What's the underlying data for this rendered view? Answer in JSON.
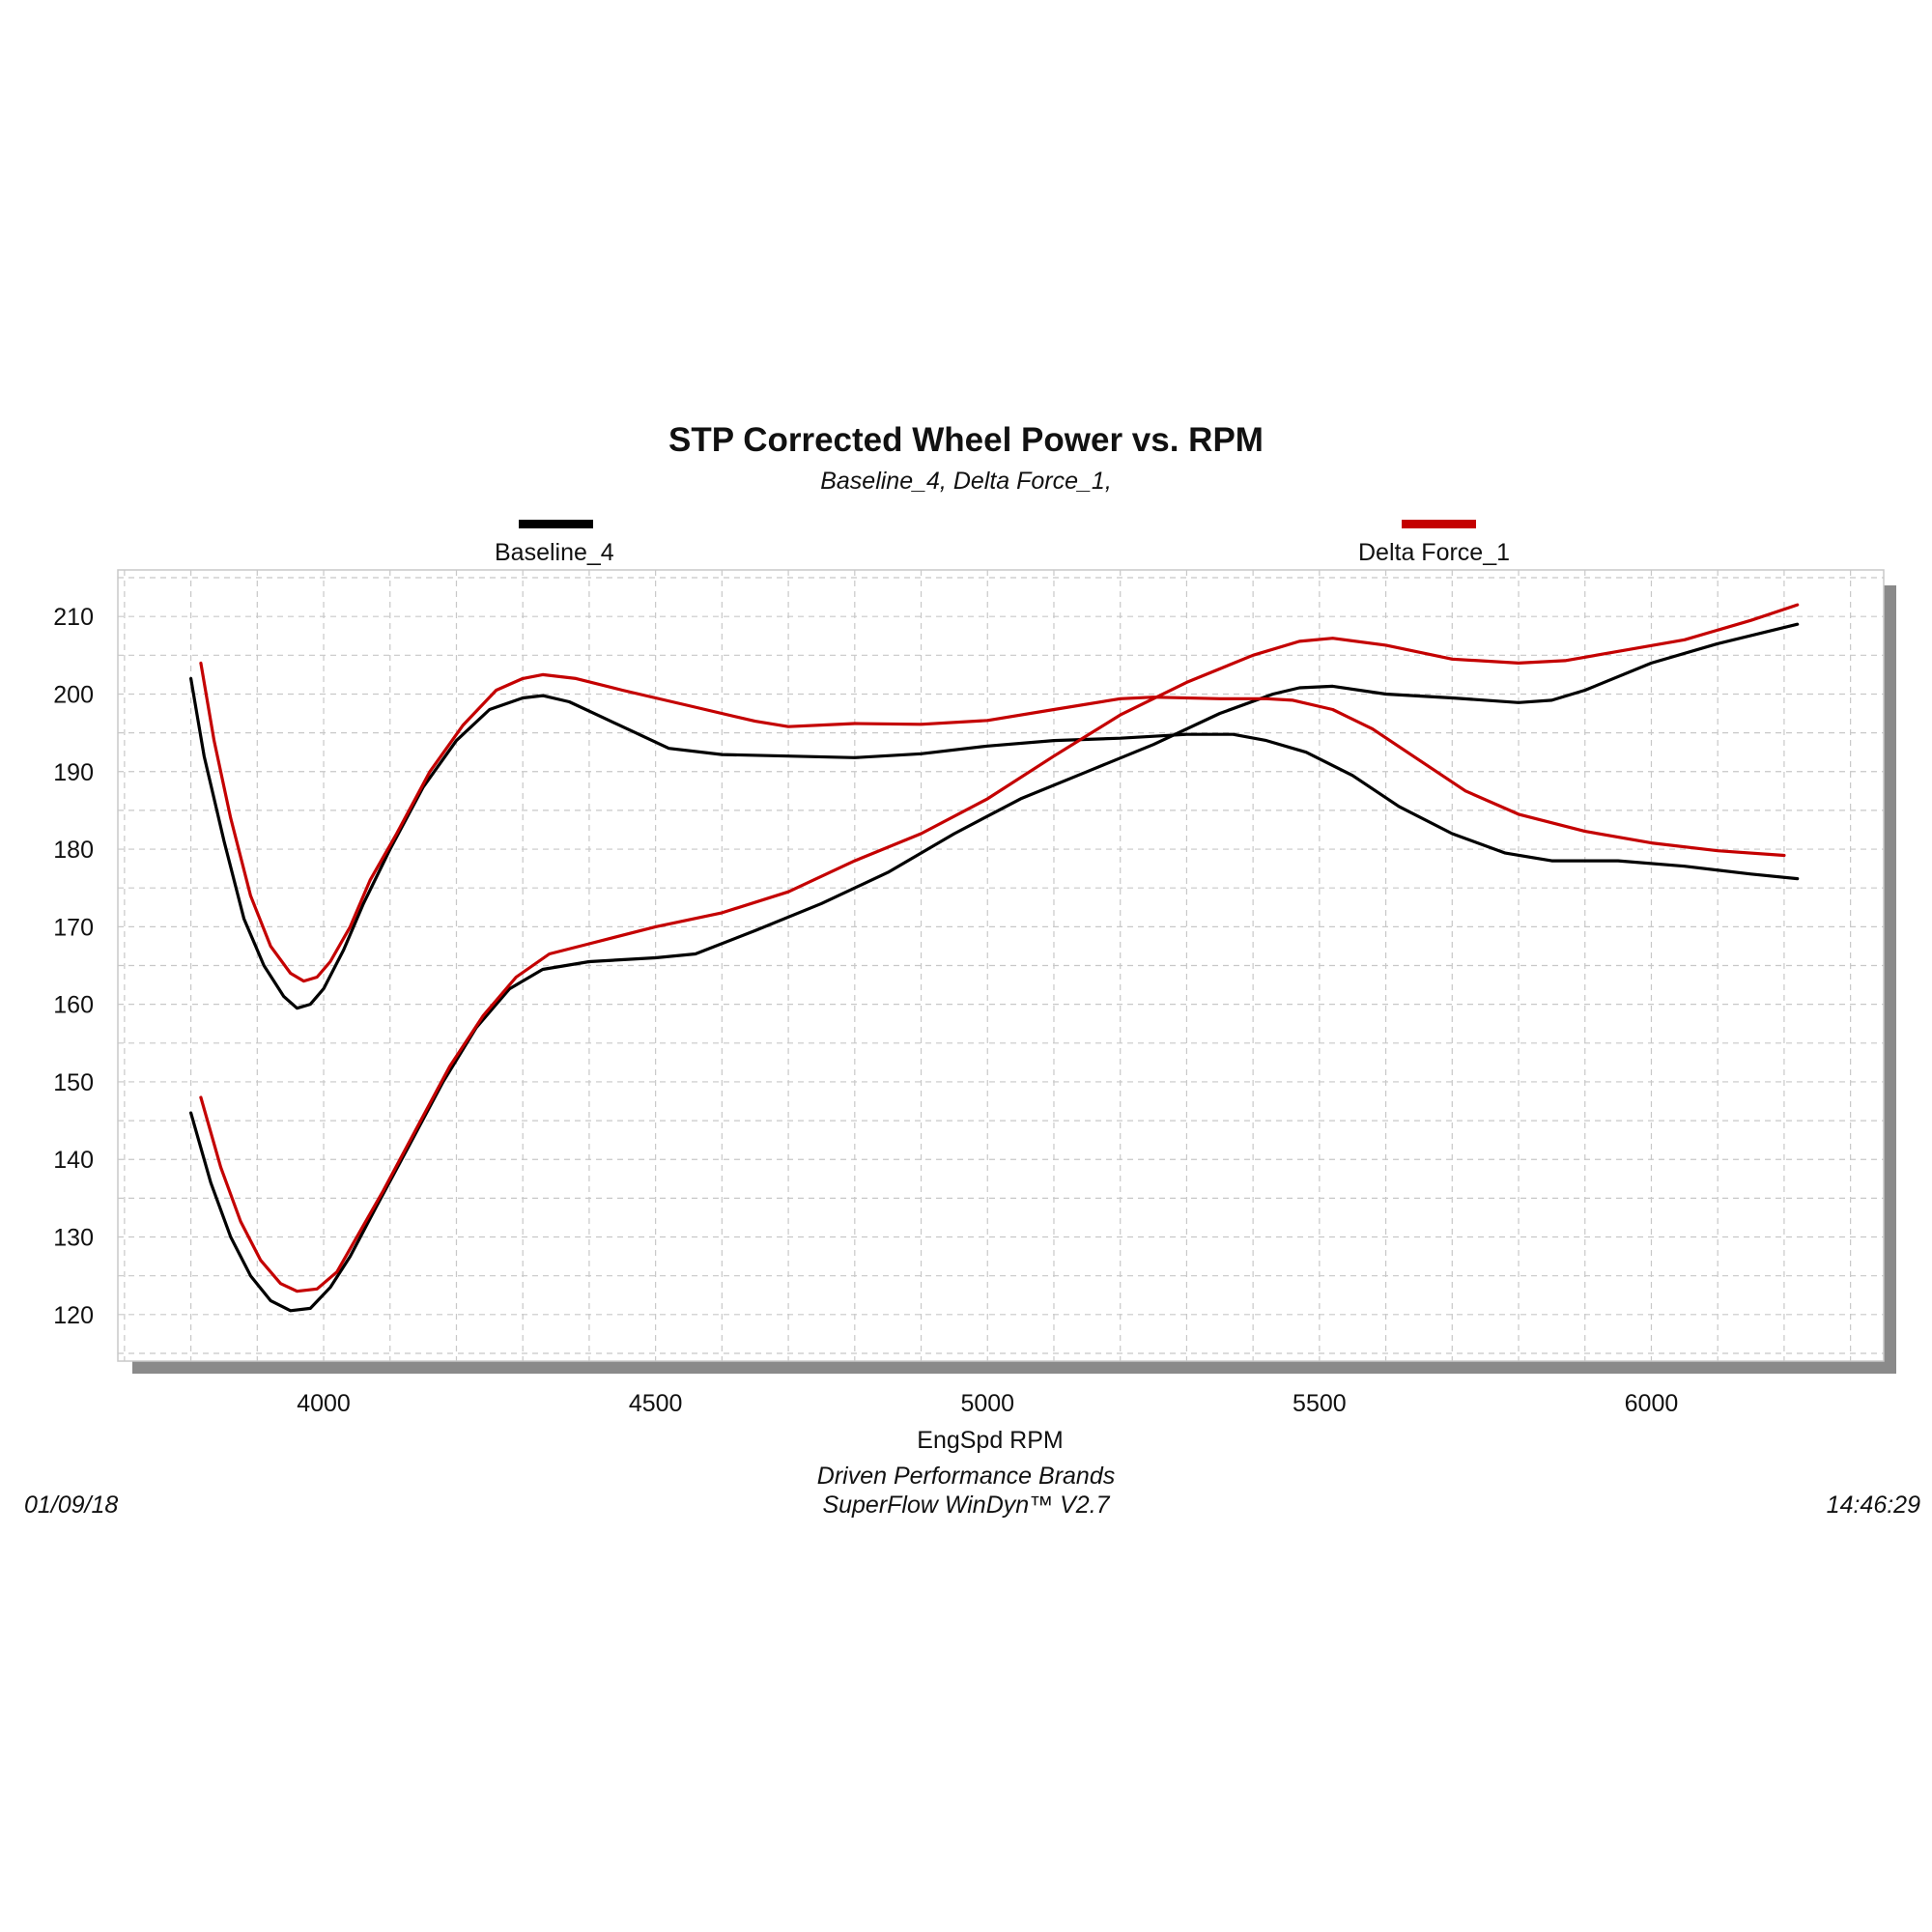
{
  "colors": {
    "series_baseline": "#000000",
    "series_delta": "#c40000",
    "shadow": "#8a8a8a",
    "grid": "#c8c8c8"
  },
  "legend": {
    "placement": "top",
    "items": [
      {
        "label": "Baseline_4",
        "color": "#000000"
      },
      {
        "label": "Delta Force_1",
        "color": "#c40000"
      }
    ]
  },
  "footer": {
    "date": "01/09/18",
    "time": "14:46:29",
    "line1": "Driven Performance Brands",
    "line2": "SuperFlow WinDyn™  V2.7"
  },
  "chart_data": {
    "type": "line",
    "title": "STP Corrected Wheel Power vs. RPM",
    "subtitle": "Baseline_4, Delta Force_1,",
    "xlabel": "EngSpd  RPM",
    "ylabel": "",
    "xlim": [
      3690,
      6350
    ],
    "ylim": [
      114,
      216
    ],
    "xticks": [
      4000,
      4500,
      5000,
      5500,
      6000
    ],
    "yticks": [
      120,
      130,
      140,
      150,
      160,
      170,
      180,
      190,
      200,
      210
    ],
    "grid": true,
    "series": [
      {
        "name": "Baseline_4",
        "color": "#000000",
        "points": [
          [
            3800,
            202
          ],
          [
            3820,
            192
          ],
          [
            3850,
            181
          ],
          [
            3880,
            171
          ],
          [
            3910,
            165
          ],
          [
            3940,
            161
          ],
          [
            3960,
            159.5
          ],
          [
            3980,
            160
          ],
          [
            4000,
            162
          ],
          [
            4030,
            167
          ],
          [
            4060,
            173
          ],
          [
            4100,
            180
          ],
          [
            4150,
            188
          ],
          [
            4200,
            194
          ],
          [
            4250,
            198
          ],
          [
            4300,
            199.5
          ],
          [
            4330,
            199.8
          ],
          [
            4370,
            199
          ],
          [
            4420,
            197
          ],
          [
            4470,
            195
          ],
          [
            4520,
            193
          ],
          [
            4600,
            192.2
          ],
          [
            4700,
            192
          ],
          [
            4800,
            191.8
          ],
          [
            4900,
            192.3
          ],
          [
            5000,
            193.3
          ],
          [
            5100,
            194
          ],
          [
            5200,
            194.3
          ],
          [
            5300,
            194.8
          ],
          [
            5370,
            194.8
          ],
          [
            5420,
            194
          ],
          [
            5480,
            192.5
          ],
          [
            5550,
            189.5
          ],
          [
            5620,
            185.5
          ],
          [
            5700,
            182
          ],
          [
            5780,
            179.5
          ],
          [
            5850,
            178.5
          ],
          [
            5950,
            178.5
          ],
          [
            6050,
            177.8
          ],
          [
            6150,
            176.8
          ],
          [
            6220,
            176.2
          ]
        ]
      },
      {
        "name": "Baseline_4",
        "color": "#000000",
        "points": [
          [
            3800,
            146
          ],
          [
            3830,
            137
          ],
          [
            3860,
            130
          ],
          [
            3890,
            125
          ],
          [
            3920,
            121.8
          ],
          [
            3950,
            120.5
          ],
          [
            3980,
            120.8
          ],
          [
            4010,
            123.5
          ],
          [
            4040,
            127.5
          ],
          [
            4080,
            134
          ],
          [
            4130,
            142
          ],
          [
            4180,
            150
          ],
          [
            4230,
            157
          ],
          [
            4280,
            162
          ],
          [
            4330,
            164.5
          ],
          [
            4400,
            165.5
          ],
          [
            4500,
            166
          ],
          [
            4560,
            166.5
          ],
          [
            4650,
            169.5
          ],
          [
            4750,
            173
          ],
          [
            4850,
            177
          ],
          [
            4950,
            182
          ],
          [
            5050,
            186.5
          ],
          [
            5150,
            190
          ],
          [
            5250,
            193.5
          ],
          [
            5350,
            197.5
          ],
          [
            5430,
            200
          ],
          [
            5470,
            200.8
          ],
          [
            5520,
            201
          ],
          [
            5600,
            200
          ],
          [
            5700,
            199.5
          ],
          [
            5800,
            198.9
          ],
          [
            5850,
            199.2
          ],
          [
            5900,
            200.5
          ],
          [
            6000,
            204
          ],
          [
            6100,
            206.5
          ],
          [
            6220,
            209
          ]
        ]
      },
      {
        "name": "Delta Force_1",
        "color": "#c40000",
        "points": [
          [
            3815,
            204
          ],
          [
            3835,
            194
          ],
          [
            3860,
            184
          ],
          [
            3890,
            174
          ],
          [
            3920,
            167.5
          ],
          [
            3950,
            164
          ],
          [
            3970,
            163
          ],
          [
            3990,
            163.5
          ],
          [
            4010,
            165.5
          ],
          [
            4040,
            170
          ],
          [
            4070,
            176
          ],
          [
            4110,
            182
          ],
          [
            4160,
            190
          ],
          [
            4210,
            196
          ],
          [
            4260,
            200.5
          ],
          [
            4300,
            202
          ],
          [
            4330,
            202.5
          ],
          [
            4380,
            202
          ],
          [
            4450,
            200.5
          ],
          [
            4550,
            198.5
          ],
          [
            4650,
            196.5
          ],
          [
            4700,
            195.8
          ],
          [
            4800,
            196.2
          ],
          [
            4900,
            196.1
          ],
          [
            5000,
            196.6
          ],
          [
            5100,
            198
          ],
          [
            5200,
            199.4
          ],
          [
            5250,
            199.6
          ],
          [
            5350,
            199.4
          ],
          [
            5420,
            199.4
          ],
          [
            5460,
            199.2
          ],
          [
            5520,
            198
          ],
          [
            5580,
            195.5
          ],
          [
            5650,
            191.5
          ],
          [
            5720,
            187.5
          ],
          [
            5800,
            184.5
          ],
          [
            5900,
            182.3
          ],
          [
            6000,
            180.8
          ],
          [
            6100,
            179.8
          ],
          [
            6200,
            179.2
          ]
        ]
      },
      {
        "name": "Delta Force_1",
        "color": "#c40000",
        "points": [
          [
            3815,
            148
          ],
          [
            3845,
            139
          ],
          [
            3875,
            132
          ],
          [
            3905,
            127
          ],
          [
            3935,
            124
          ],
          [
            3960,
            123
          ],
          [
            3990,
            123.3
          ],
          [
            4020,
            125.5
          ],
          [
            4050,
            130
          ],
          [
            4090,
            136
          ],
          [
            4140,
            144
          ],
          [
            4190,
            152
          ],
          [
            4240,
            158.5
          ],
          [
            4290,
            163.5
          ],
          [
            4340,
            166.5
          ],
          [
            4400,
            167.8
          ],
          [
            4500,
            170
          ],
          [
            4600,
            171.8
          ],
          [
            4700,
            174.5
          ],
          [
            4800,
            178.5
          ],
          [
            4900,
            182
          ],
          [
            5000,
            186.5
          ],
          [
            5100,
            192
          ],
          [
            5200,
            197.3
          ],
          [
            5300,
            201.5
          ],
          [
            5400,
            205
          ],
          [
            5470,
            206.8
          ],
          [
            5520,
            207.2
          ],
          [
            5600,
            206.3
          ],
          [
            5700,
            204.5
          ],
          [
            5800,
            204
          ],
          [
            5870,
            204.3
          ],
          [
            5950,
            205.5
          ],
          [
            6050,
            207
          ],
          [
            6150,
            209.5
          ],
          [
            6220,
            211.5
          ]
        ]
      }
    ]
  }
}
